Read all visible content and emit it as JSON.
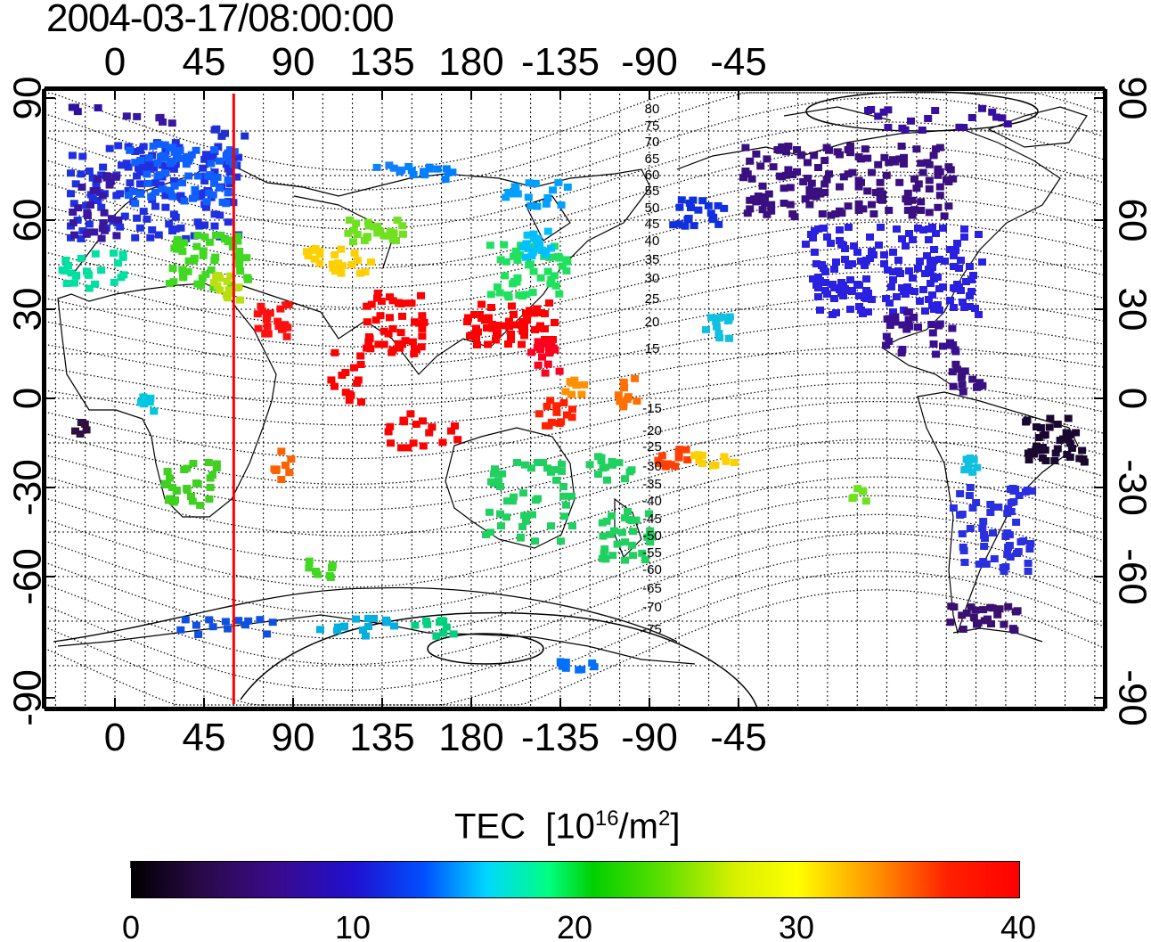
{
  "title": "2004-03-17/08:00:00",
  "lon_ticks_top": [
    "0",
    "45",
    "90",
    "135",
    "180",
    "-135",
    "-90",
    "-45"
  ],
  "lon_ticks_bottom": [
    "0",
    "45",
    "90",
    "135",
    "180",
    "-135",
    "-90",
    "-45"
  ],
  "lat_ticks_left": [
    "90",
    "60",
    "30",
    "0",
    "-30",
    "-60",
    "-90"
  ],
  "lat_ticks_right": [
    "90",
    "60",
    "30",
    "0",
    "-30",
    "-60",
    "-90"
  ],
  "contour_labels": [
    "80",
    "75",
    "70",
    "65",
    "60",
    "55",
    "50",
    "45",
    "40",
    "35",
    "30",
    "25",
    "20",
    "15",
    "-15",
    "-20",
    "-25",
    "-30",
    "-35",
    "-40",
    "-45",
    "-50",
    "-55",
    "-60",
    "-65",
    "-70",
    "-75"
  ],
  "colorbar": {
    "label": "TEC",
    "unit_base": "[10",
    "unit_exp": "16",
    "unit_mid": "/m",
    "unit_exp2": "2",
    "unit_end": "]",
    "ticks": [
      "0",
      "10",
      "20",
      "30",
      "40"
    ]
  },
  "marker_longitude": 60,
  "colors": {
    "marker": "#ff0000",
    "frame": "#000000"
  }
}
